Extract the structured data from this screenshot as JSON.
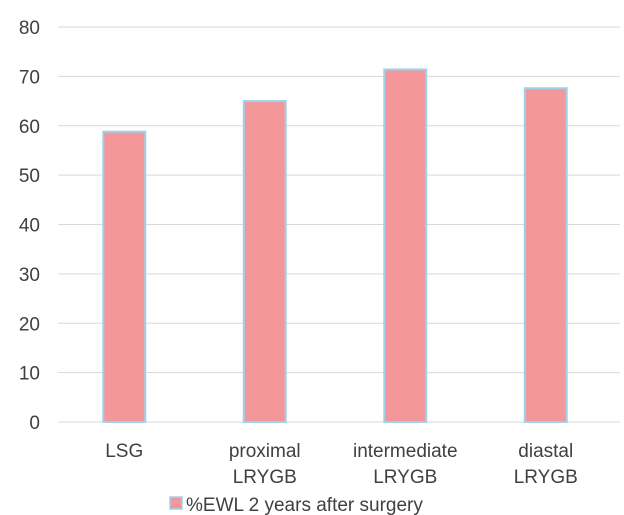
{
  "chart_data": {
    "type": "bar",
    "categories": [
      [
        "LSG"
      ],
      [
        "proximal",
        "LRYGB"
      ],
      [
        "intermediate",
        "LRYGB"
      ],
      [
        "diastal",
        "LRYGB"
      ]
    ],
    "series": [
      {
        "name": "%EWL 2 years after surgery",
        "values": [
          58.8,
          65.0,
          71.4,
          67.6
        ]
      }
    ],
    "ylim": [
      0,
      80
    ],
    "yticks": [
      0,
      10,
      20,
      30,
      40,
      50,
      60,
      70,
      80
    ],
    "grid": true,
    "legend": "bottom",
    "colors": {
      "bar_fill": "#f4979a",
      "bar_stroke": "#9dd3ea",
      "grid": "#d9d9d9",
      "text": "#404040"
    }
  }
}
